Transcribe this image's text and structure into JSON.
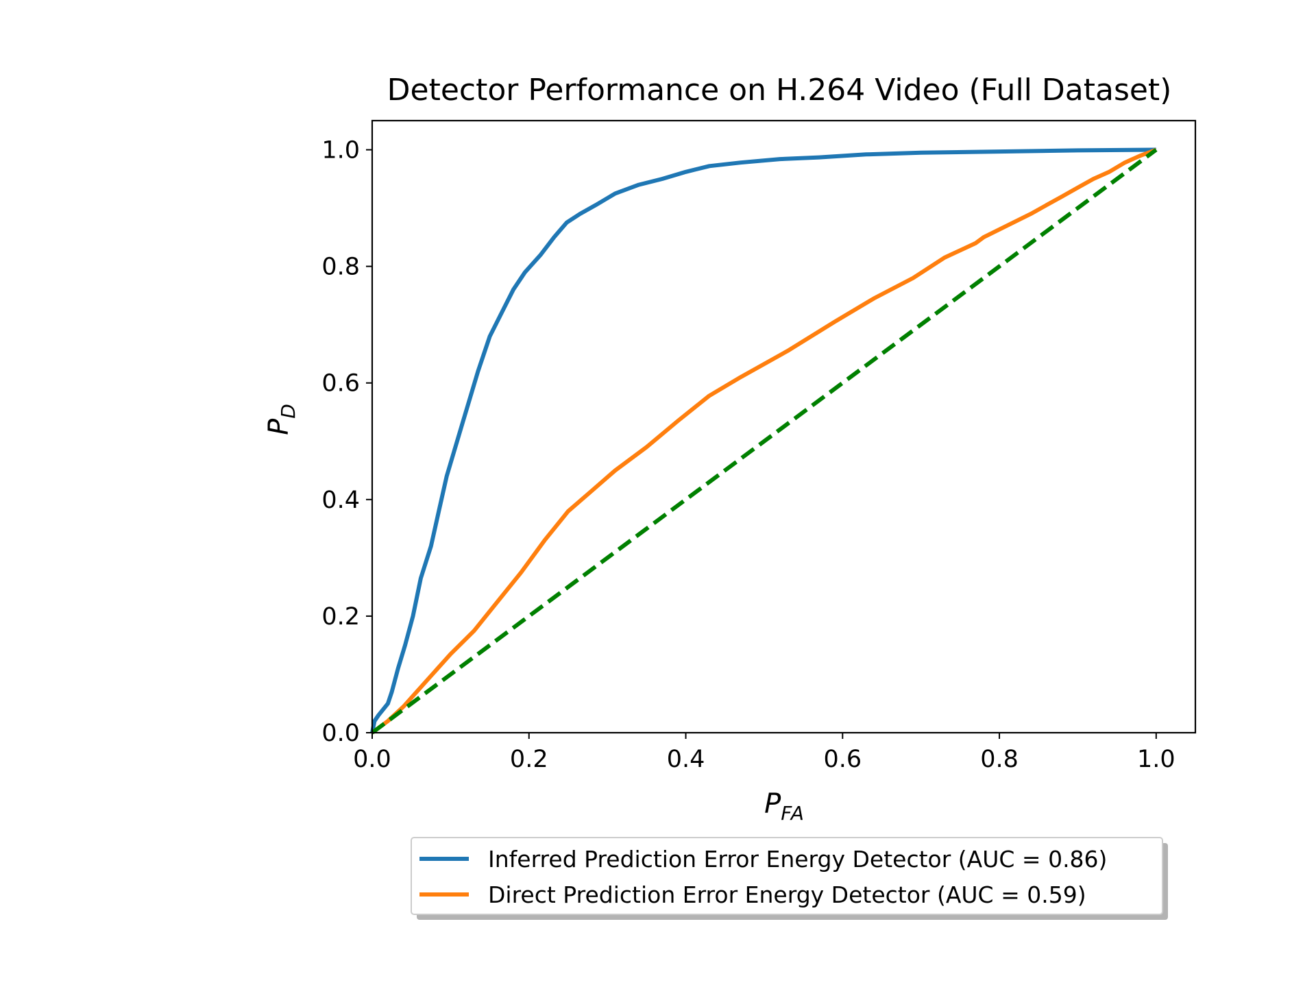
{
  "chart_data": {
    "type": "line",
    "title": "Detector Performance on H.264 Video (Full Dataset)",
    "xlabel": {
      "main": "P",
      "sub": "FA"
    },
    "ylabel": {
      "main": "P",
      "sub": "D"
    },
    "xlim": [
      0.0,
      1.05
    ],
    "ylim": [
      0.0,
      1.05
    ],
    "xticks": [
      0.0,
      0.2,
      0.4,
      0.6,
      0.8,
      1.0
    ],
    "yticks": [
      0.0,
      0.2,
      0.4,
      0.6,
      0.8,
      1.0
    ],
    "xtick_labels": [
      "0.0",
      "0.2",
      "0.4",
      "0.6",
      "0.8",
      "1.0"
    ],
    "ytick_labels": [
      "0.0",
      "0.2",
      "0.4",
      "0.6",
      "0.8",
      "1.0"
    ],
    "grid": false,
    "legend_placement": "bottom-center, below plot",
    "series": [
      {
        "name": "Inferred Prediction Error Energy Detector (AUC = 0.86)",
        "color": "#1f77b4",
        "style": "solid",
        "x": [
          0.0,
          0.003,
          0.008,
          0.02,
          0.025,
          0.033,
          0.042,
          0.052,
          0.062,
          0.075,
          0.085,
          0.095,
          0.115,
          0.135,
          0.15,
          0.165,
          0.18,
          0.195,
          0.215,
          0.232,
          0.248,
          0.265,
          0.285,
          0.31,
          0.34,
          0.37,
          0.4,
          0.43,
          0.47,
          0.52,
          0.57,
          0.63,
          0.7,
          0.8,
          0.9,
          1.0
        ],
        "y": [
          0.0,
          0.02,
          0.03,
          0.05,
          0.07,
          0.11,
          0.15,
          0.2,
          0.265,
          0.32,
          0.38,
          0.44,
          0.53,
          0.62,
          0.68,
          0.72,
          0.76,
          0.79,
          0.82,
          0.85,
          0.875,
          0.89,
          0.905,
          0.925,
          0.94,
          0.95,
          0.962,
          0.972,
          0.978,
          0.984,
          0.987,
          0.992,
          0.995,
          0.997,
          0.999,
          1.0
        ]
      },
      {
        "name": "Direct Prediction Error Energy Detector (AUC = 0.59)",
        "color": "#ff7f0e",
        "style": "solid",
        "x": [
          0.0,
          0.02,
          0.04,
          0.06,
          0.08,
          0.1,
          0.13,
          0.16,
          0.19,
          0.22,
          0.25,
          0.28,
          0.31,
          0.35,
          0.39,
          0.43,
          0.47,
          0.53,
          0.59,
          0.64,
          0.69,
          0.73,
          0.77,
          0.78,
          0.81,
          0.84,
          0.86,
          0.88,
          0.9,
          0.92,
          0.94,
          0.96,
          0.98,
          1.0
        ],
        "y": [
          0.0,
          0.02,
          0.045,
          0.075,
          0.105,
          0.135,
          0.175,
          0.225,
          0.275,
          0.33,
          0.38,
          0.415,
          0.45,
          0.49,
          0.535,
          0.578,
          0.61,
          0.655,
          0.705,
          0.745,
          0.78,
          0.815,
          0.84,
          0.85,
          0.87,
          0.89,
          0.905,
          0.92,
          0.935,
          0.95,
          0.962,
          0.978,
          0.99,
          1.0
        ]
      },
      {
        "color": "#008000",
        "style": "dashed",
        "x": [
          0.0,
          1.0
        ],
        "y": [
          0.0,
          1.0
        ]
      }
    ],
    "legend": [
      {
        "label": "Inferred Prediction Error Energy Detector (AUC = 0.86)",
        "color": "#1f77b4"
      },
      {
        "label": "Direct Prediction Error Energy Detector (AUC = 0.59)",
        "color": "#ff7f0e"
      }
    ]
  }
}
